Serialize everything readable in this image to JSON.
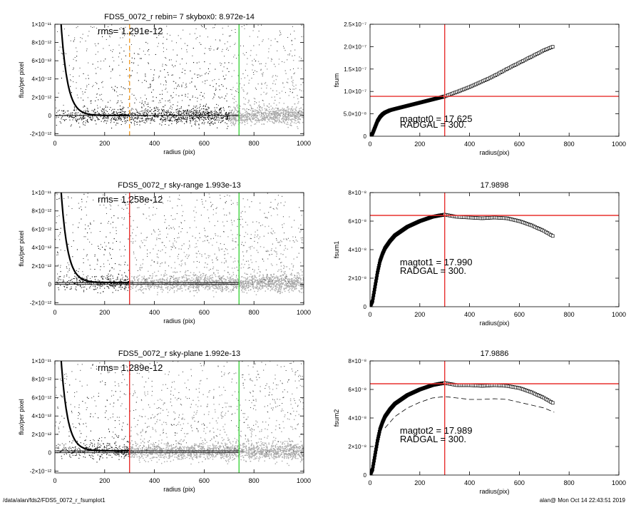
{
  "footer": {
    "path": "/data/alan/fds2/FDS5_0072_r_fsumplot1",
    "stamp": "alan@  Mon Oct 14 22:43:51 2019"
  },
  "colors": {
    "marker_red": "#e8312f",
    "marker_green": "#3ed43e",
    "marker_orange": "#f0a030",
    "scatter_light": "#a8a8a8",
    "scatter_dark": "#000000"
  },
  "chart_data": [
    {
      "id": "flux-top",
      "type": "scatter",
      "title": "FDS5_0072_r rebin= 7    skybox0:  8.972e-14",
      "annotation": "rms= 1.291e-12",
      "xlabel": "radius (pix)",
      "ylabel": "flux/per pixel",
      "xlim": [
        0,
        1000
      ],
      "ylim": [
        -2.2e-12,
        1e-11
      ],
      "xticks": [
        0,
        200,
        400,
        600,
        800,
        1000
      ],
      "xtick_labels": [
        "0",
        "200",
        "400",
        "600",
        "800",
        "1000"
      ],
      "yticks": [
        -2e-12,
        0,
        2e-12,
        4e-12,
        6e-12,
        8e-12,
        1e-11
      ],
      "ytick_labels": [
        "-2×10⁻¹²",
        "0",
        "2×10⁻¹²",
        "4×10⁻¹²",
        "6×10⁻¹²",
        "8×10⁻¹²",
        "1×10⁻¹¹"
      ],
      "vlines": [
        {
          "x": 300,
          "color": "#f0a030",
          "style": "dashed"
        },
        {
          "x": 740,
          "color": "#3ed43e",
          "style": "solid"
        }
      ],
      "hlines": [
        {
          "y": 0
        }
      ],
      "profile": {
        "amplitude": 2.6e-11,
        "scale": 26,
        "sky": 0
      },
      "light_points_from_x": 700
    },
    {
      "id": "flux-mid",
      "type": "scatter",
      "title": "FDS5_0072_r sky-range  1.993e-13",
      "annotation": "rms= 1.258e-12",
      "xlabel": "radius (pix)",
      "ylabel": "flux/per pixel",
      "xlim": [
        0,
        1000
      ],
      "ylim": [
        -2.2e-12,
        1e-11
      ],
      "xticks": [
        0,
        200,
        400,
        600,
        800,
        1000
      ],
      "xtick_labels": [
        "0",
        "200",
        "400",
        "600",
        "800",
        "1000"
      ],
      "yticks": [
        -2e-12,
        0,
        2e-12,
        4e-12,
        6e-12,
        8e-12,
        1e-11
      ],
      "ytick_labels": [
        "-2×10⁻¹²",
        "0",
        "2×10⁻¹²",
        "4×10⁻¹²",
        "6×10⁻¹²",
        "8×10⁻¹²",
        "1×10⁻¹¹"
      ],
      "vlines": [
        {
          "x": 300,
          "color": "#e8312f",
          "style": "solid"
        },
        {
          "x": 740,
          "color": "#3ed43e",
          "style": "solid"
        }
      ],
      "hlines": [
        {
          "y": 0
        },
        {
          "y": 2e-13
        }
      ],
      "profile": {
        "amplitude": 2.6e-11,
        "scale": 26,
        "sky": 2e-13
      },
      "light_points_from_x": 300
    },
    {
      "id": "flux-bot",
      "type": "scatter",
      "title": "FDS5_0072_r sky-plane  1.992e-13",
      "annotation": "rms= 1.289e-12",
      "xlabel": "radius (pix)",
      "ylabel": "flux/per pixel",
      "xlim": [
        0,
        1000
      ],
      "ylim": [
        -2.2e-12,
        1e-11
      ],
      "xticks": [
        0,
        200,
        400,
        600,
        800,
        1000
      ],
      "xtick_labels": [
        "0",
        "200",
        "400",
        "600",
        "800",
        "1000"
      ],
      "yticks": [
        -2e-12,
        0,
        2e-12,
        4e-12,
        6e-12,
        8e-12,
        1e-11
      ],
      "ytick_labels": [
        "-2×10⁻¹²",
        "0",
        "2×10⁻¹²",
        "4×10⁻¹²",
        "6×10⁻¹²",
        "8×10⁻¹²",
        "1×10⁻¹¹"
      ],
      "vlines": [
        {
          "x": 300,
          "color": "#e8312f",
          "style": "solid"
        },
        {
          "x": 740,
          "color": "#3ed43e",
          "style": "solid"
        }
      ],
      "hlines": [
        {
          "y": 0
        },
        {
          "y": 2e-13
        }
      ],
      "profile": {
        "amplitude": 2.6e-11,
        "scale": 26,
        "sky": 2e-13
      },
      "light_points_from_x": 300
    },
    {
      "id": "fsum-top",
      "type": "line",
      "title": "",
      "xlabel": "radius(pix)",
      "ylabel": "fsum",
      "xlim": [
        0,
        1000
      ],
      "ylim": [
        0,
        2.5e-07
      ],
      "xticks": [
        0,
        200,
        400,
        600,
        800,
        1000
      ],
      "xtick_labels": [
        "0",
        "200",
        "400",
        "600",
        "800",
        "1000"
      ],
      "yticks": [
        0,
        5e-08,
        1e-07,
        1.5e-07,
        2e-07,
        2.5e-07
      ],
      "ytick_labels": [
        "0",
        "5.0×10⁻⁸",
        "1.0×10⁻⁷",
        "1.5×10⁻⁷",
        "2.0×10⁻⁷",
        "2.5×10⁻⁷"
      ],
      "annotations": [
        {
          "text": "magtot0 =  17.625",
          "x": 120,
          "y": 3.2e-08
        },
        {
          "text": "RADGAL =    300.",
          "x": 120,
          "y": 1.9e-08
        }
      ],
      "vline": 300,
      "hline": 8.9e-08,
      "series": [
        {
          "x": [
            0,
            10,
            20,
            30,
            40,
            50,
            60,
            80,
            100,
            150,
            200,
            250,
            300,
            350,
            400,
            450,
            500,
            550,
            600,
            650,
            700,
            740
          ],
          "y": [
            0,
            6e-09,
            2e-08,
            3.4e-08,
            4.3e-08,
            4.9e-08,
            5.3e-08,
            5.8e-08,
            6.1e-08,
            6.8e-08,
            7.5e-08,
            8.2e-08,
            8.9e-08,
            9.9e-08,
            1.1e-07,
            1.22e-07,
            1.35e-07,
            1.5e-07,
            1.64e-07,
            1.78e-07,
            1.92e-07,
            2.01e-07
          ],
          "style": "markers"
        }
      ]
    },
    {
      "id": "fsum-mid",
      "type": "line",
      "title": "17.9898",
      "xlabel": "radius(pix)",
      "ylabel": "fsum1",
      "xlim": [
        0,
        1000
      ],
      "ylim": [
        0,
        8e-08
      ],
      "xticks": [
        0,
        200,
        400,
        600,
        800,
        1000
      ],
      "xtick_labels": [
        "0",
        "200",
        "400",
        "600",
        "800",
        "1000"
      ],
      "yticks": [
        0,
        2e-08,
        4e-08,
        6e-08,
        8e-08
      ],
      "ytick_labels": [
        "0",
        "2×10⁻⁸",
        "4×10⁻⁸",
        "6×10⁻⁸",
        "8×10⁻⁸"
      ],
      "annotations": [
        {
          "text": "magtot1 =  17.990",
          "x": 120,
          "y": 2.9e-08
        },
        {
          "text": "RADGAL =    300.",
          "x": 120,
          "y": 2.3e-08
        }
      ],
      "vline": 300,
      "hline": 6.4e-08,
      "series": [
        {
          "x": [
            0,
            10,
            20,
            30,
            40,
            50,
            60,
            80,
            100,
            150,
            200,
            250,
            280,
            300,
            350,
            400,
            450,
            500,
            550,
            600,
            650,
            700,
            740
          ],
          "y": [
            0,
            4e-09,
            1.4e-08,
            2.4e-08,
            3.2e-08,
            3.7e-08,
            4.1e-08,
            4.6e-08,
            5e-08,
            5.6e-08,
            6e-08,
            6.3e-08,
            6.4e-08,
            6.45e-08,
            6.3e-08,
            6.25e-08,
            6.2e-08,
            6.25e-08,
            6.2e-08,
            6e-08,
            5.7e-08,
            5.3e-08,
            4.9e-08
          ],
          "style": "markers"
        }
      ]
    },
    {
      "id": "fsum-bot",
      "type": "line",
      "title": "17.9886",
      "xlabel": "radius(pix)",
      "ylabel": "fsum2",
      "xlim": [
        0,
        1000
      ],
      "ylim": [
        0,
        8e-08
      ],
      "xticks": [
        0,
        200,
        400,
        600,
        800,
        1000
      ],
      "xtick_labels": [
        "0",
        "200",
        "400",
        "600",
        "800",
        "1000"
      ],
      "yticks": [
        0,
        2e-08,
        4e-08,
        6e-08,
        8e-08
      ],
      "ytick_labels": [
        "0",
        "2×10⁻⁸",
        "4×10⁻⁸",
        "6×10⁻⁸",
        "8×10⁻⁸"
      ],
      "annotations": [
        {
          "text": "magtot2 =  17.989",
          "x": 120,
          "y": 2.9e-08
        },
        {
          "text": "RADGAL =    300.",
          "x": 120,
          "y": 2.3e-08
        }
      ],
      "vline": 300,
      "hline": 6.4e-08,
      "series": [
        {
          "x": [
            0,
            10,
            20,
            30,
            40,
            50,
            60,
            80,
            100,
            150,
            200,
            250,
            280,
            300,
            350,
            400,
            450,
            500,
            550,
            600,
            650,
            700,
            740
          ],
          "y": [
            0,
            4e-09,
            1.4e-08,
            2.4e-08,
            3.2e-08,
            3.7e-08,
            4.1e-08,
            4.6e-08,
            5e-08,
            5.6e-08,
            6e-08,
            6.3e-08,
            6.4e-08,
            6.45e-08,
            6.3e-08,
            6.3e-08,
            6.25e-08,
            6.3e-08,
            6.25e-08,
            6.1e-08,
            5.8e-08,
            5.4e-08,
            5e-08
          ],
          "style": "markers"
        },
        {
          "x": [
            60,
            100,
            150,
            200,
            250,
            300,
            350,
            400,
            450,
            500,
            550,
            600,
            650,
            700,
            740
          ],
          "y": [
            3.3e-08,
            4.1e-08,
            4.7e-08,
            5.1e-08,
            5.4e-08,
            5.5e-08,
            5.4e-08,
            5.3e-08,
            5.3e-08,
            5.35e-08,
            5.3e-08,
            5.1e-08,
            4.9e-08,
            4.7e-08,
            4.4e-08
          ],
          "style": "dashed"
        }
      ]
    }
  ]
}
